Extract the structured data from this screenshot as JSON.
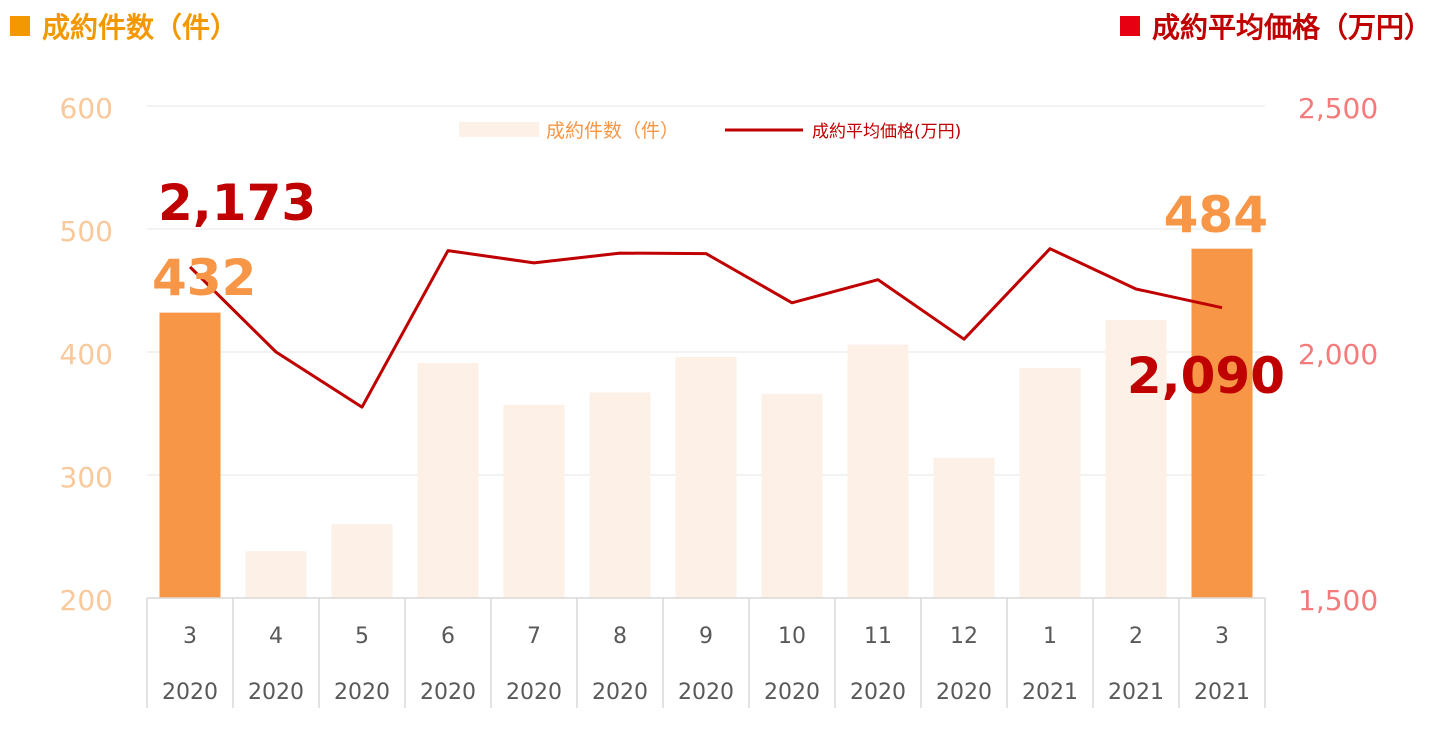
{
  "header": {
    "left_title": "成約件数（件）",
    "right_title": "成約平均価格（万円）"
  },
  "colors": {
    "bar_highlight": "#F79646",
    "bar_faded": "#FDF0E6",
    "line": "#C00000",
    "left_axis_text": "#F9C89B",
    "right_axis_text": "#F47B7B",
    "left_header": "#F39800",
    "right_header_square": "#E60012",
    "callout_count": "#F79646",
    "callout_price": "#C00000"
  },
  "chart_data": {
    "type": "bar",
    "categories": [
      "3",
      "4",
      "5",
      "6",
      "7",
      "8",
      "9",
      "10",
      "11",
      "12",
      "1",
      "2",
      "3"
    ],
    "years": [
      "2020",
      "2020",
      "2020",
      "2020",
      "2020",
      "2020",
      "2020",
      "2020",
      "2020",
      "2020",
      "2021",
      "2021",
      "2021"
    ],
    "y_left": {
      "min": 200,
      "max": 600,
      "ticks": [
        "200",
        "300",
        "400",
        "500",
        "600"
      ],
      "tick_values": [
        200,
        300,
        400,
        500,
        600
      ]
    },
    "y_right": {
      "min": 1500,
      "max": 2500,
      "ticks": [
        "1,500",
        "2,000",
        "2,500"
      ],
      "tick_values": [
        1500,
        2000,
        2500
      ]
    },
    "highlighted_bars": [
      0,
      12
    ],
    "grid": true,
    "legend_position": "top-center",
    "series": [
      {
        "name": "成約件数（件）",
        "type": "bar",
        "axis": "left",
        "values": [
          432,
          238,
          260,
          391,
          357,
          367,
          396,
          366,
          406,
          314,
          387,
          426,
          484
        ]
      },
      {
        "name": "成約平均価格(万円)",
        "type": "line",
        "axis": "right",
        "values": [
          2173,
          2000,
          1888,
          2206,
          2181,
          2201,
          2200,
          2100,
          2147,
          2026,
          2210,
          2128,
          2090
        ]
      }
    ],
    "annotations": [
      {
        "text": "2,173",
        "series": "price",
        "index": 0
      },
      {
        "text": "432",
        "series": "count",
        "index": 0
      },
      {
        "text": "484",
        "series": "count",
        "index": 12
      },
      {
        "text": "2,090",
        "series": "price",
        "index": 12
      }
    ]
  }
}
